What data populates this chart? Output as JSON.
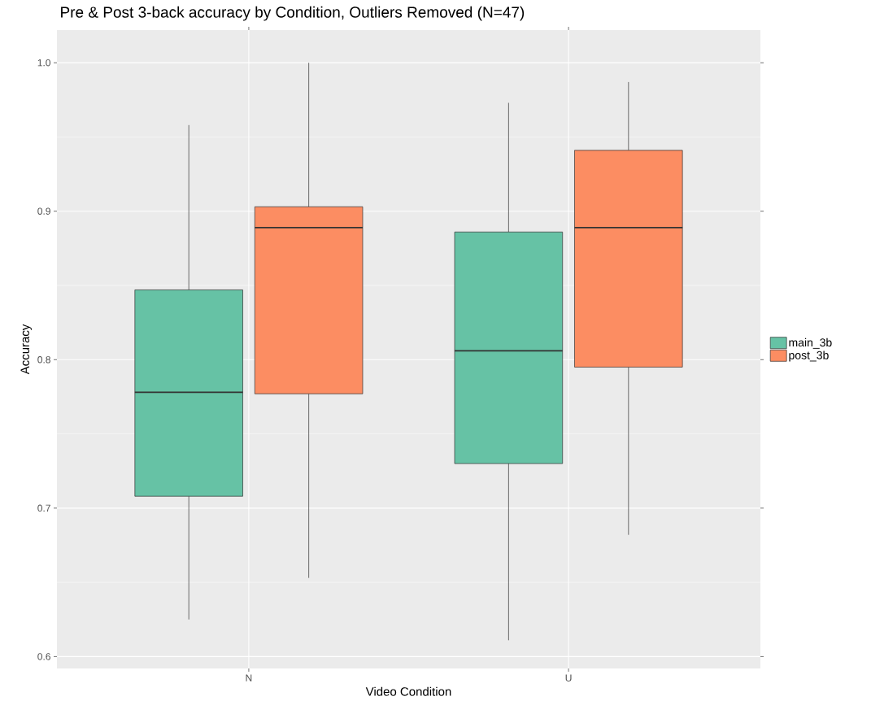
{
  "chart_data": {
    "type": "box",
    "title": "Pre & Post 3-back accuracy by Condition, Outliers Removed (N=47)",
    "xlabel": "Video Condition",
    "ylabel": "Accuracy",
    "categories": [
      "N",
      "U"
    ],
    "series": [
      {
        "name": "main_3b",
        "color": "#66C2A5",
        "boxes": [
          {
            "low": 0.625,
            "q1": 0.708,
            "median": 0.778,
            "q3": 0.847,
            "high": 0.958
          },
          {
            "low": 0.611,
            "q1": 0.73,
            "median": 0.806,
            "q3": 0.886,
            "high": 0.973
          }
        ]
      },
      {
        "name": "post_3b",
        "color": "#FC8D62",
        "boxes": [
          {
            "low": 0.653,
            "q1": 0.777,
            "median": 0.889,
            "q3": 0.903,
            "high": 1.0
          },
          {
            "low": 0.682,
            "q1": 0.795,
            "median": 0.889,
            "q3": 0.941,
            "high": 0.987
          }
        ]
      }
    ],
    "ylim": [
      0.592,
      1.022
    ],
    "yticks": [
      0.6,
      0.7,
      0.8,
      0.9,
      {
        "value": 1.0,
        "label": "1.0"
      }
    ],
    "grid": true,
    "legend": "right"
  }
}
